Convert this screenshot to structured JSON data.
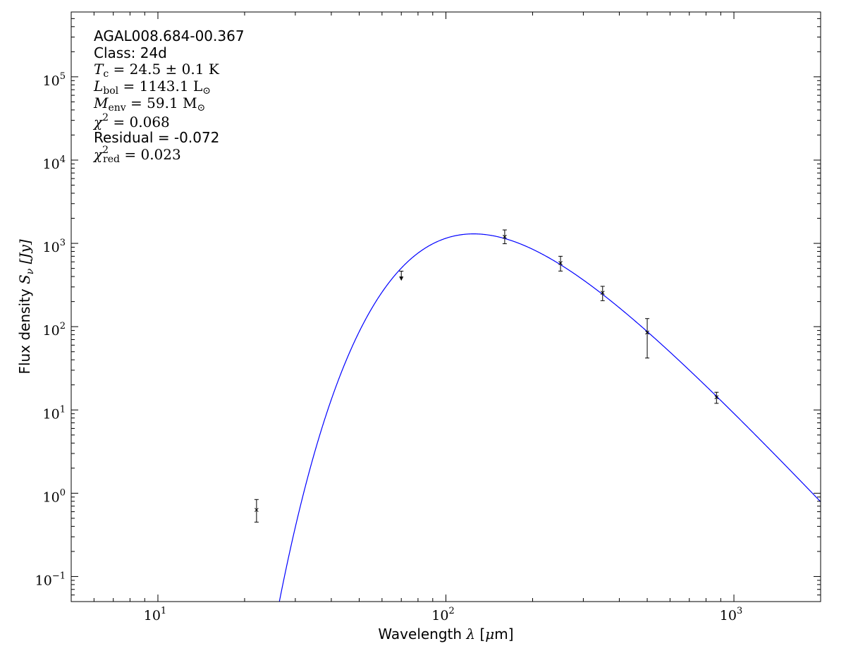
{
  "chart_data": {
    "type": "scatter",
    "xlabel": {
      "prefix": "Wavelength ",
      "sym": "λ",
      "unit_open": " [",
      "unit_mu": "μ",
      "unit_rest": "m]"
    },
    "ylabel": {
      "prefix": "Flux density ",
      "sym": "S",
      "sub": "ν",
      "unit": " [Jy]"
    },
    "x_scale": "log",
    "y_scale": "log",
    "xlim": [
      5,
      2000
    ],
    "ylim": [
      0.05,
      600000
    ],
    "x_ticks": [
      {
        "value": 10,
        "base": "10",
        "exp": "1"
      },
      {
        "value": 100,
        "base": "10",
        "exp": "2"
      },
      {
        "value": 1000,
        "base": "10",
        "exp": "3"
      }
    ],
    "y_ticks": [
      {
        "value": 0.1,
        "base": "10",
        "exp": "−1"
      },
      {
        "value": 1,
        "base": "10",
        "exp": "0"
      },
      {
        "value": 10,
        "base": "10",
        "exp": "1"
      },
      {
        "value": 100,
        "base": "10",
        "exp": "2"
      },
      {
        "value": 1000,
        "base": "10",
        "exp": "3"
      },
      {
        "value": 10000,
        "base": "10",
        "exp": "4"
      },
      {
        "value": 100000,
        "base": "10",
        "exp": "5"
      }
    ],
    "grid": false,
    "annotations": {
      "source": "AGAL008.684-00.367",
      "class": "Class: 24d",
      "tc": {
        "sym": "T",
        "sub": "c",
        "rest": " = 24.5 ± 0.1 K"
      },
      "lbol": {
        "sym": "L",
        "sub": "bol",
        "rest": " = 1143.1 L",
        "sub2": "⊙"
      },
      "menv": {
        "sym": "M",
        "sub": "env",
        "rest": " = 59.1 M",
        "sub2": "⊙"
      },
      "chi2": {
        "sym": "χ",
        "sup": "2",
        "rest": " = 0.068"
      },
      "residual": "Residual = -0.072",
      "chi2red": {
        "sym": "χ",
        "sup": "2",
        "sub": "red",
        "rest": " = 0.023"
      }
    },
    "points": [
      {
        "x": 22,
        "y": 0.63,
        "y_low": 0.45,
        "y_high": 0.84
      },
      {
        "x": 70,
        "y": 400,
        "upper_limit": true
      },
      {
        "x": 160,
        "y": 1200,
        "y_low": 990,
        "y_high": 1450
      },
      {
        "x": 250,
        "y": 580,
        "y_low": 465,
        "y_high": 700
      },
      {
        "x": 350,
        "y": 255,
        "y_low": 205,
        "y_high": 305
      },
      {
        "x": 500,
        "y": 85,
        "y_low": 42,
        "y_high": 125
      },
      {
        "x": 870,
        "y": 14.2,
        "y_low": 12.0,
        "y_high": 16.3
      }
    ],
    "model": {
      "type": "modified-blackbody",
      "temperature_K": 24.5,
      "beta": 1.75,
      "peak_flux": 1300,
      "color": "#0000ff"
    },
    "colors": {
      "points": "#000000",
      "model": "#0000ff",
      "axes": "#000000"
    }
  }
}
